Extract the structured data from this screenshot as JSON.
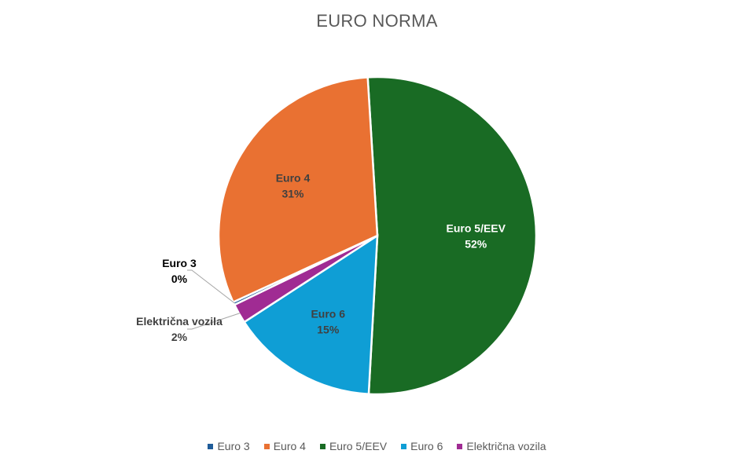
{
  "chart_data": {
    "type": "pie",
    "title": "EURO NORMA",
    "legend_position": "bottom",
    "slices": [
      {
        "name": "Euro 3",
        "value": 0.3,
        "label_pct": "0%",
        "color": "#1f5c99"
      },
      {
        "name": "Euro 4",
        "value": 31,
        "label_pct": "31%",
        "color": "#e97132"
      },
      {
        "name": "Euro 5/EEV",
        "value": 52,
        "label_pct": "52%",
        "color": "#196b24"
      },
      {
        "name": "Euro 6",
        "value": 15,
        "label_pct": "15%",
        "color": "#0f9ed5"
      },
      {
        "name": "Električna vozila",
        "value": 2,
        "label_pct": "2%",
        "color": "#a02b93"
      }
    ]
  }
}
